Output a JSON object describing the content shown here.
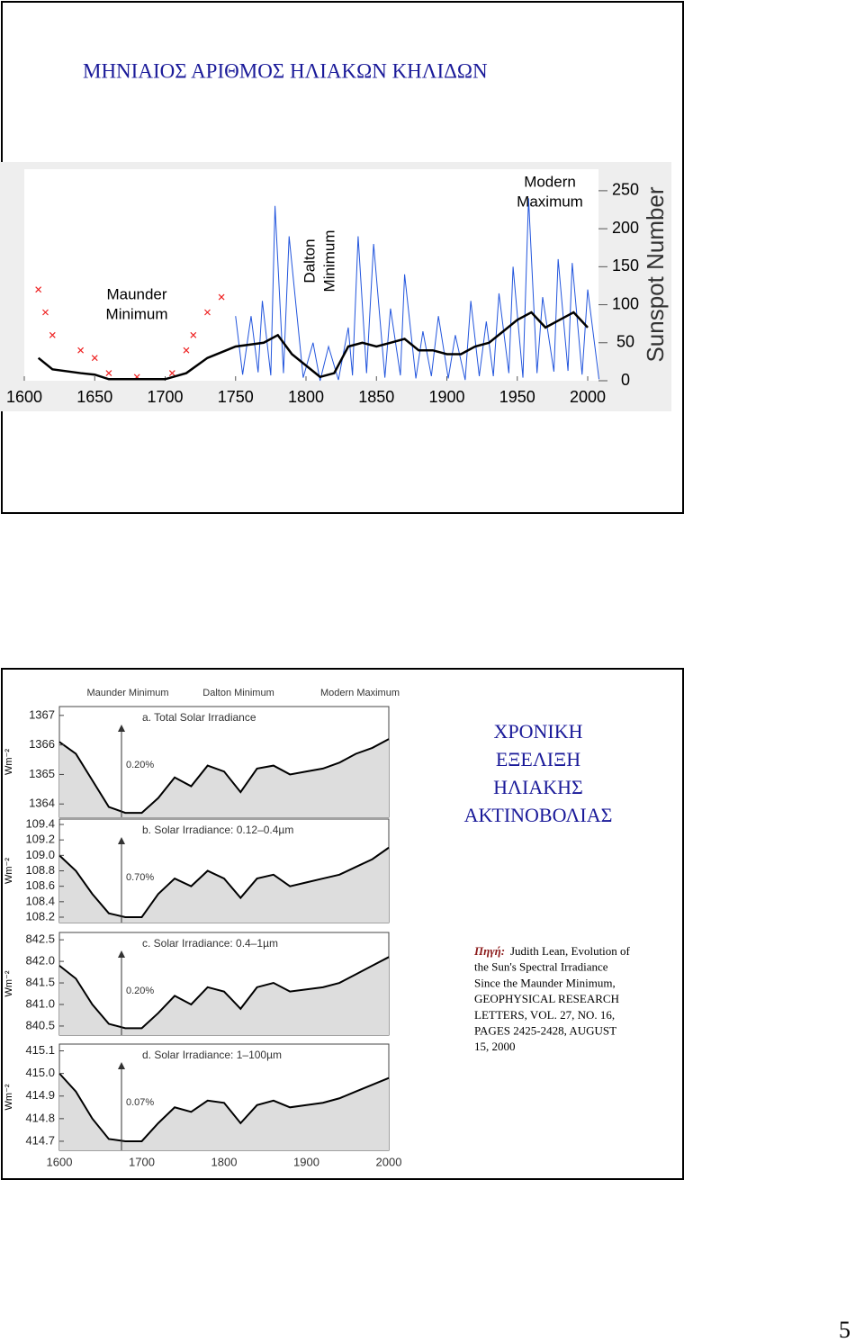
{
  "slides": [
    {
      "title": "ΜΗΝΙΑΙΟΣ ΑΡΙΘΜΟΣ ΗΛΙΑΚΩΝ ΚΗΛΙΔΩΝ"
    },
    {
      "title_lines": [
        "ΧΡΟΝΙΚΗ",
        "ΕΞΕΛΙΞΗ",
        "ΗΛΙΑΚΗΣ",
        "ΑΚΤΙΝΟΒΟΛΙΑΣ"
      ],
      "source_label": "Πηγή:",
      "source_lines": [
        "Judith Lean, Evolution of",
        "the Sun's Spectral Irradiance",
        "Since the Maunder Minimum,",
        "GEOPHYSICAL RESEARCH",
        "LETTERS, VOL. 27, NO. 16,",
        "PAGES 2425-2428, AUGUST",
        "15, 2000"
      ]
    }
  ],
  "chart_data": [
    {
      "type": "line",
      "y_label": "Sunspot Number",
      "annotations": [
        {
          "lines": [
            "Maunder",
            "Minimum"
          ]
        },
        {
          "lines": [
            "Dalton",
            "Minimum"
          ]
        },
        {
          "lines": [
            "Modern",
            "Maximum"
          ]
        }
      ],
      "xlim": [
        1600,
        2015
      ],
      "xticks": [
        1600,
        1650,
        1700,
        1750,
        1800,
        1850,
        1900,
        1950,
        2000
      ],
      "ylim": [
        0,
        270
      ],
      "yticks": [
        0,
        50,
        100,
        150,
        200,
        250
      ],
      "series": [
        {
          "color": "#ee2222",
          "marker": "x",
          "x": [
            1610,
            1615,
            1620,
            1640,
            1650,
            1660,
            1680,
            1705,
            1715,
            1720,
            1730,
            1740
          ],
          "values": [
            120,
            90,
            60,
            40,
            30,
            10,
            5,
            10,
            40,
            60,
            90,
            110
          ]
        },
        {
          "color": "#2255dd",
          "x": [
            1750,
            1755,
            1761,
            1766,
            1769,
            1775,
            1778,
            1784,
            1788,
            1798,
            1805,
            1810,
            1816,
            1823,
            1830,
            1833,
            1837,
            1843,
            1848,
            1856,
            1860,
            1867,
            1870,
            1878,
            1883,
            1889,
            1894,
            1901,
            1906,
            1913,
            1917,
            1923,
            1928,
            1933,
            1937,
            1944,
            1947,
            1954,
            1958,
            1964,
            1968,
            1976,
            1979,
            1986,
            1989,
            1996,
            2000,
            2008
          ],
          "values": [
            85,
            8,
            85,
            11,
            105,
            7,
            230,
            10,
            190,
            4,
            50,
            0,
            45,
            1,
            70,
            7,
            190,
            10,
            180,
            4,
            95,
            7,
            140,
            3,
            65,
            6,
            85,
            3,
            60,
            1,
            105,
            6,
            78,
            6,
            115,
            10,
            150,
            4,
            240,
            10,
            110,
            12,
            160,
            13,
            155,
            8,
            120,
            2
          ]
        },
        {
          "color": "#000000",
          "x": [
            1610,
            1620,
            1640,
            1650,
            1660,
            1700,
            1715,
            1730,
            1750,
            1770,
            1780,
            1790,
            1800,
            1810,
            1820,
            1830,
            1840,
            1850,
            1860,
            1870,
            1880,
            1890,
            1900,
            1910,
            1920,
            1930,
            1940,
            1950,
            1960,
            1970,
            1980,
            1990,
            2000
          ],
          "values": [
            30,
            15,
            10,
            8,
            2,
            2,
            10,
            30,
            45,
            50,
            60,
            35,
            20,
            5,
            10,
            45,
            50,
            45,
            50,
            55,
            40,
            40,
            35,
            35,
            45,
            50,
            65,
            80,
            90,
            70,
            80,
            90,
            70
          ]
        }
      ]
    },
    {
      "type": "line",
      "header_annotations": [
        "Maunder Minimum",
        "Dalton Minimum",
        "Modern Maximum"
      ],
      "xlim": [
        1600,
        2000
      ],
      "xticks": [
        1600,
        1700,
        1800,
        1900,
        2000
      ],
      "x": [
        1600,
        1620,
        1640,
        1660,
        1680,
        1700,
        1720,
        1740,
        1760,
        1780,
        1800,
        1820,
        1840,
        1860,
        1880,
        1900,
        1920,
        1940,
        1960,
        1980,
        2000
      ],
      "panels": [
        {
          "title": "a. Total Solar Irradiance",
          "annotation": "0.20%",
          "y_label": "Wm⁻²",
          "color": "#000000",
          "ylim": [
            1363.55,
            1367.3
          ],
          "yticks": [
            1364,
            1365,
            1366,
            1367
          ],
          "values": [
            1366.1,
            1365.7,
            1364.8,
            1363.9,
            1363.7,
            1363.7,
            1364.2,
            1364.9,
            1364.6,
            1365.3,
            1365.1,
            1364.4,
            1365.2,
            1365.3,
            1365.0,
            1365.1,
            1365.2,
            1365.4,
            1365.7,
            1365.9,
            1366.2
          ]
        },
        {
          "title": "b. Solar Irradiance: 0.12–0.4µm",
          "annotation": "0.70%",
          "y_label": "Wm⁻²",
          "color": "#000000",
          "ylim": [
            108.13,
            109.47
          ],
          "yticks": [
            108.2,
            108.4,
            108.6,
            108.8,
            {
              "value": 109,
              "label": "109.0"
            },
            109.2,
            109.4
          ],
          "values": [
            109.0,
            108.8,
            108.5,
            108.25,
            108.2,
            108.2,
            108.5,
            108.7,
            108.6,
            108.8,
            108.7,
            108.45,
            108.7,
            108.75,
            108.6,
            108.65,
            108.7,
            108.75,
            108.85,
            108.95,
            109.1
          ]
        },
        {
          "title": "c. Solar Irradiance: 0.4–1µm",
          "annotation": "0.20%",
          "y_label": "Wm⁻²",
          "color": "#000000",
          "ylim": [
            840.29,
            842.67
          ],
          "yticks": [
            840.5,
            {
              "value": 841,
              "label": "841.0"
            },
            841.5,
            {
              "value": 842,
              "label": "842.0"
            },
            842.5
          ],
          "values": [
            841.9,
            841.6,
            841.0,
            840.55,
            840.45,
            840.45,
            840.8,
            841.2,
            841.0,
            841.4,
            841.3,
            840.9,
            841.4,
            841.5,
            841.3,
            841.35,
            841.4,
            841.5,
            841.7,
            841.9,
            842.1
          ]
        },
        {
          "title": "d. Solar Irradiance: 1–100µm",
          "annotation": "0.07%",
          "y_label": "Wm⁻²",
          "color": "#000000",
          "ylim": [
            414.66,
            415.13
          ],
          "yticks": [
            414.7,
            414.8,
            414.9,
            {
              "value": 415,
              "label": "415.0"
            },
            415.1
          ],
          "values": [
            415.0,
            414.92,
            414.8,
            414.71,
            414.7,
            414.7,
            414.78,
            414.85,
            414.83,
            414.88,
            414.87,
            414.78,
            414.86,
            414.88,
            414.85,
            414.86,
            414.87,
            414.89,
            414.92,
            414.95,
            414.98
          ]
        }
      ]
    }
  ],
  "page_number": "5"
}
